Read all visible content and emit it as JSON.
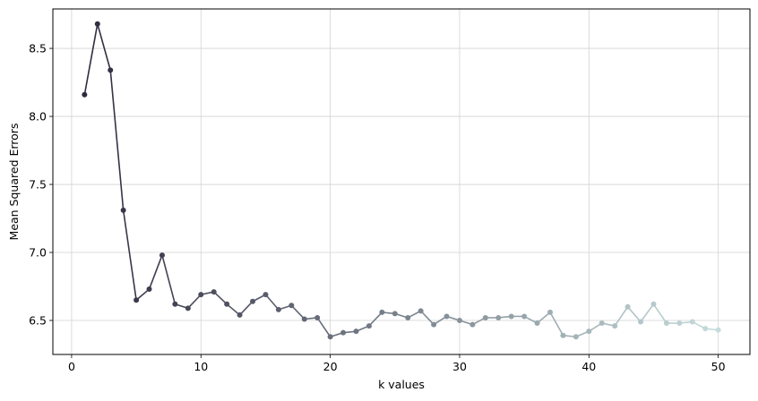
{
  "chart_data": {
    "type": "line",
    "title": "",
    "xlabel": "k values",
    "ylabel": "Mean Squared Errors",
    "xlim": [
      -1.45,
      52.45
    ],
    "ylim": [
      6.25,
      8.79
    ],
    "xticks": [
      0,
      10,
      20,
      30,
      40,
      50
    ],
    "yticks": [
      6.5,
      7.0,
      7.5,
      8.0,
      8.5
    ],
    "xtick_labels": [
      "0",
      "10",
      "20",
      "30",
      "40",
      "50"
    ],
    "ytick_labels": [
      "6.5",
      "7.0",
      "7.5",
      "8.0",
      "8.5"
    ],
    "grid": true,
    "legend": "none",
    "color_start": "#2e2a3e",
    "color_end": "#c6dcdc",
    "series": [
      {
        "x": [
          1,
          2,
          3,
          4,
          5,
          6,
          7,
          8,
          9,
          10,
          11,
          12,
          13,
          14,
          15,
          16,
          17,
          18,
          19,
          20,
          21,
          22,
          23,
          24,
          25,
          26,
          27,
          28,
          29,
          30,
          31,
          32,
          33,
          34,
          35,
          36,
          37,
          38,
          39,
          40,
          41,
          42,
          43,
          44,
          45,
          46,
          47,
          48,
          49,
          50
        ],
        "values": [
          8.16,
          8.68,
          8.34,
          7.31,
          6.65,
          6.73,
          6.98,
          6.62,
          6.59,
          6.69,
          6.71,
          6.62,
          6.54,
          6.64,
          6.69,
          6.58,
          6.61,
          6.51,
          6.52,
          6.38,
          6.41,
          6.42,
          6.46,
          6.56,
          6.55,
          6.52,
          6.57,
          6.47,
          6.53,
          6.5,
          6.47,
          6.52,
          6.52,
          6.53,
          6.53,
          6.48,
          6.56,
          6.39,
          6.38,
          6.42,
          6.48,
          6.46,
          6.6,
          6.49,
          6.62,
          6.48,
          6.48,
          6.49,
          6.44,
          6.43
        ]
      }
    ]
  }
}
